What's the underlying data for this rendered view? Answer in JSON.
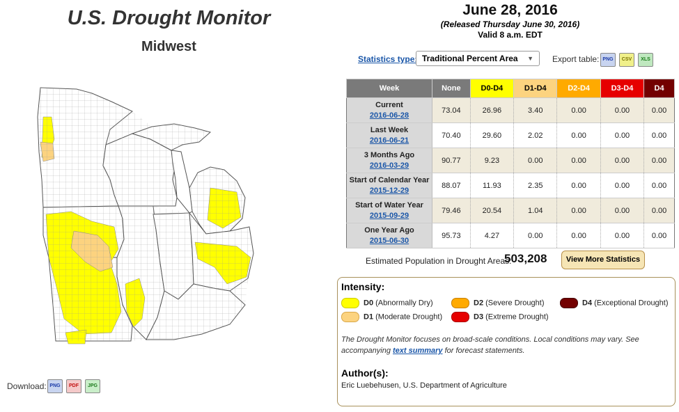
{
  "header": {
    "title": "U.S. Drought Monitor",
    "region": "Midwest",
    "date": "June 28, 2016",
    "released": "(Released Thursday June 30, 2016)",
    "valid": "Valid 8 a.m. EDT"
  },
  "download": {
    "label": "Download:",
    "formats": [
      "PNG",
      "PDF",
      "JPG"
    ]
  },
  "statistics": {
    "type_label": "Statistics type:",
    "type_value": "Traditional Percent Area",
    "export_label": "Export table:",
    "export_formats": [
      "PNG",
      "CSV",
      "XLS"
    ],
    "columns": [
      "Week",
      "None",
      "D0-D4",
      "D1-D4",
      "D2-D4",
      "D3-D4",
      "D4"
    ],
    "rows": [
      {
        "week": "Current",
        "date": "2016-06-28",
        "values": [
          "73.04",
          "26.96",
          "3.40",
          "0.00",
          "0.00",
          "0.00"
        ]
      },
      {
        "week": "Last Week",
        "date": "2016-06-21",
        "values": [
          "70.40",
          "29.60",
          "2.02",
          "0.00",
          "0.00",
          "0.00"
        ]
      },
      {
        "week": "3 Months Ago",
        "date": "2016-03-29",
        "values": [
          "90.77",
          "9.23",
          "0.00",
          "0.00",
          "0.00",
          "0.00"
        ]
      },
      {
        "week": "Start of Calendar Year",
        "date": "2015-12-29",
        "values": [
          "88.07",
          "11.93",
          "2.35",
          "0.00",
          "0.00",
          "0.00"
        ]
      },
      {
        "week": "Start of Water Year",
        "date": "2015-09-29",
        "values": [
          "79.46",
          "20.54",
          "1.04",
          "0.00",
          "0.00",
          "0.00"
        ]
      },
      {
        "week": "One Year Ago",
        "date": "2015-06-30",
        "values": [
          "95.73",
          "4.27",
          "0.00",
          "0.00",
          "0.00",
          "0.00"
        ]
      }
    ],
    "population_label": "Estimated Population in Drought Areas:",
    "population_value": "503,208",
    "more_button": "View More Statistics"
  },
  "legend": {
    "title": "Intensity:",
    "items": [
      {
        "code": "D0",
        "desc": "(Abnormally Dry)",
        "color": "#ffff00"
      },
      {
        "code": "D1",
        "desc": "(Moderate Drought)",
        "color": "#fcd37f"
      },
      {
        "code": "D2",
        "desc": "(Severe Drought)",
        "color": "#ffaa00"
      },
      {
        "code": "D3",
        "desc": "(Extreme Drought)",
        "color": "#e60000"
      },
      {
        "code": "D4",
        "desc": "(Exceptional Drought)",
        "color": "#730000"
      }
    ],
    "disclaimer_pre": "The Drought Monitor focuses on broad-scale conditions. Local conditions may vary. See accompanying",
    "disclaimer_link": "text summary",
    "disclaimer_post": "for forecast statements.",
    "author_title": "Author(s):",
    "author": "Eric Luebehusen, U.S. Department of Agriculture"
  }
}
